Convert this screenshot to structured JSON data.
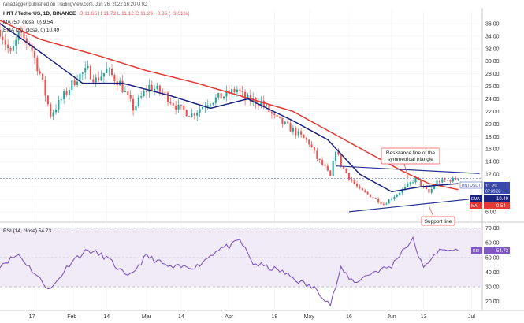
{
  "header": {
    "publisher": "ranadagger published on TradingView.com, Jun 26, 2022 16:20 UTC",
    "symbol": "HNT / TetherUS, 1D, BINANCE",
    "ohlc": "O 11.65  H 11.73  L 11.12  C 11.29  −0.35 (−3.01%)",
    "ma_label": "MA (50, close, 0)  9.54",
    "ema_label": "EMA (20, close, 0)  10.49",
    "rsi_label": "RSI (14, close)  54.73"
  },
  "colors": {
    "up": "#26a69a",
    "down": "#ef5350",
    "ema": "#1a237e",
    "ma": "#e53935",
    "rsi": "#7e57c2",
    "trendline": "#283593",
    "last_price": "#3949ab"
  },
  "chart_data": [
    {
      "type": "candlestick",
      "title": "HNT / TetherUS, 1D, BINANCE",
      "ylabel": "",
      "ylim": [
        4.6,
        38.0
      ],
      "yticks": [
        "36.00",
        "34.00",
        "32.00",
        "30.00",
        "28.00",
        "26.00",
        "24.00",
        "22.00",
        "20.00",
        "18.00",
        "16.00",
        "14.00",
        "12.00",
        "10.00",
        "8.00",
        "6.00"
      ],
      "xticks": [
        "17",
        "Feb",
        "14",
        "Mar",
        "14",
        "Apr",
        "18",
        "May",
        "16",
        "Jun",
        "13",
        "Jul"
      ],
      "xtick_dates": [
        "2022-01-17",
        "2022-02-01",
        "2022-02-14",
        "2022-03-01",
        "2022-03-14",
        "2022-04-01",
        "2022-04-18",
        "2022-05-01",
        "2022-05-16",
        "2022-06-01",
        "2022-06-13",
        "2022-07-01"
      ],
      "x_range": [
        "2022-01-05",
        "2022-07-05"
      ],
      "anchors": [
        [
          "2022-01-05",
          35.0
        ],
        [
          "2022-01-09",
          31.0
        ],
        [
          "2022-01-12",
          34.0
        ],
        [
          "2022-01-16",
          33.0
        ],
        [
          "2022-01-20",
          28.0
        ],
        [
          "2022-01-24",
          21.5
        ],
        [
          "2022-01-29",
          24.5
        ],
        [
          "2022-02-03",
          27.5
        ],
        [
          "2022-02-07",
          28.5
        ],
        [
          "2022-02-10",
          27.0
        ],
        [
          "2022-02-14",
          28.5
        ],
        [
          "2022-02-19",
          26.5
        ],
        [
          "2022-02-24",
          22.5
        ],
        [
          "2022-03-02",
          26.0
        ],
        [
          "2022-03-07",
          25.0
        ],
        [
          "2022-03-13",
          22.5
        ],
        [
          "2022-03-18",
          21.5
        ],
        [
          "2022-03-24",
          23.5
        ],
        [
          "2022-03-30",
          24.5
        ],
        [
          "2022-04-04",
          25.5
        ],
        [
          "2022-04-07",
          24.0
        ],
        [
          "2022-04-13",
          23.5
        ],
        [
          "2022-04-18",
          21.0
        ],
        [
          "2022-04-25",
          19.0
        ],
        [
          "2022-05-01",
          17.0
        ],
        [
          "2022-05-04",
          14.5
        ],
        [
          "2022-05-07",
          13.0
        ],
        [
          "2022-05-09",
          11.5
        ],
        [
          "2022-05-11",
          16.0
        ],
        [
          "2022-05-13",
          13.5
        ],
        [
          "2022-05-16",
          11.5
        ],
        [
          "2022-05-20",
          9.5
        ],
        [
          "2022-05-25",
          8.3
        ],
        [
          "2022-05-29",
          7.2
        ],
        [
          "2022-06-01",
          8.2
        ],
        [
          "2022-06-06",
          9.8
        ],
        [
          "2022-06-10",
          11.3
        ],
        [
          "2022-06-13",
          9.8
        ],
        [
          "2022-06-15",
          9.0
        ],
        [
          "2022-06-18",
          10.8
        ],
        [
          "2022-06-22",
          11.0
        ],
        [
          "2022-06-26",
          11.29
        ]
      ],
      "overlays": [
        {
          "name": "MA (50)",
          "values": [
            [
              "2022-01-05",
              36.5
            ],
            [
              "2022-01-20",
              33.5
            ],
            [
              "2022-02-10",
              31.0
            ],
            [
              "2022-03-01",
              28.5
            ],
            [
              "2022-03-20",
              26.5
            ],
            [
              "2022-04-05",
              24.5
            ],
            [
              "2022-04-25",
              22.0
            ],
            [
              "2022-05-10",
              18.5
            ],
            [
              "2022-05-25",
              15.0
            ],
            [
              "2022-06-05",
              12.5
            ],
            [
              "2022-06-15",
              10.5
            ],
            [
              "2022-06-26",
              9.54
            ]
          ]
        },
        {
          "name": "EMA (20)",
          "values": [
            [
              "2022-01-05",
              36.0
            ],
            [
              "2022-01-20",
              31.5
            ],
            [
              "2022-02-05",
              26.5
            ],
            [
              "2022-02-20",
              26.5
            ],
            [
              "2022-03-10",
              24.5
            ],
            [
              "2022-03-25",
              22.5
            ],
            [
              "2022-04-08",
              24.0
            ],
            [
              "2022-04-25",
              20.5
            ],
            [
              "2022-05-08",
              17.5
            ],
            [
              "2022-05-20",
              12.0
            ],
            [
              "2022-06-01",
              9.2
            ],
            [
              "2022-06-12",
              10.0
            ],
            [
              "2022-06-26",
              10.49
            ]
          ]
        }
      ],
      "trendlines": [
        {
          "name": "resistance",
          "from": [
            "2022-05-11",
            13.3
          ],
          "to": [
            "2022-07-04",
            12.1
          ]
        },
        {
          "name": "support",
          "from": [
            "2022-05-16",
            6.0
          ],
          "to": [
            "2022-06-30",
            8.0
          ]
        }
      ],
      "annotations": [
        {
          "text": "Resistance line of the symmetrical triangle",
          "lines": [
            "Resistance line of the",
            "symmetrical triangle"
          ]
        },
        {
          "text": "Support line",
          "lines": [
            "Support line"
          ]
        }
      ],
      "price_tags": [
        {
          "label": "HNTUSDT",
          "value": "11.29",
          "sub": "07:39:33"
        },
        {
          "label": "EMA",
          "value": "10.49"
        },
        {
          "label": "MA",
          "value": "9.54"
        }
      ]
    },
    {
      "type": "line",
      "title": "RSI (14, close)",
      "ylabel": "",
      "ylim": [
        15,
        73
      ],
      "yticks": [
        "70.00",
        "60.00",
        "50.00",
        "40.00",
        "30.00",
        "20.00"
      ],
      "bands": [
        30,
        70
      ],
      "series": [
        {
          "name": "RSI",
          "values": [
            [
              "2022-01-05",
              45
            ],
            [
              "2022-01-12",
              52
            ],
            [
              "2022-01-20",
              35
            ],
            [
              "2022-01-24",
              28
            ],
            [
              "2022-02-01",
              48
            ],
            [
              "2022-02-07",
              55
            ],
            [
              "2022-02-14",
              50
            ],
            [
              "2022-02-22",
              36
            ],
            [
              "2022-03-01",
              51
            ],
            [
              "2022-03-10",
              43
            ],
            [
              "2022-03-20",
              44
            ],
            [
              "2022-03-28",
              56
            ],
            [
              "2022-04-02",
              58
            ],
            [
              "2022-04-05",
              62
            ],
            [
              "2022-04-10",
              46
            ],
            [
              "2022-04-20",
              41
            ],
            [
              "2022-04-28",
              33
            ],
            [
              "2022-05-04",
              28
            ],
            [
              "2022-05-09",
              18
            ],
            [
              "2022-05-13",
              42
            ],
            [
              "2022-05-18",
              33
            ],
            [
              "2022-05-25",
              40
            ],
            [
              "2022-06-01",
              44
            ],
            [
              "2022-06-05",
              55
            ],
            [
              "2022-06-09",
              62
            ],
            [
              "2022-06-13",
              42
            ],
            [
              "2022-06-17",
              53
            ],
            [
              "2022-06-21",
              55
            ],
            [
              "2022-06-26",
              54.73
            ]
          ]
        }
      ],
      "last_value": "54.73"
    }
  ]
}
